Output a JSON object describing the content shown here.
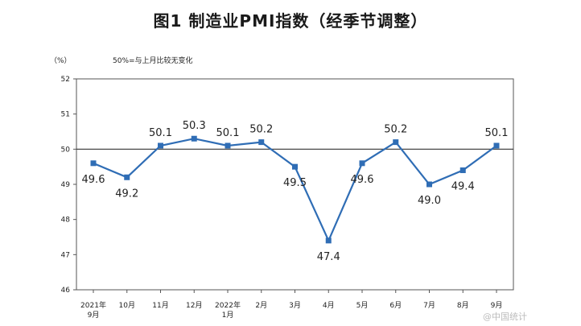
{
  "chart_data": {
    "type": "line",
    "title": "图1  制造业PMI指数（经季节调整）",
    "ylabel": "（%）",
    "reference_note": "50%=与上月比较无变化",
    "reference_value": 50,
    "ylim": [
      46,
      52
    ],
    "yticks": [
      "46",
      "47",
      "48",
      "49",
      "50",
      "51",
      "52"
    ],
    "categories": [
      [
        "2021年",
        "9月"
      ],
      [
        "10月"
      ],
      [
        "11月"
      ],
      [
        "12月"
      ],
      [
        "2022年",
        "1月"
      ],
      [
        "2月"
      ],
      [
        "3月"
      ],
      [
        "4月"
      ],
      [
        "5月"
      ],
      [
        "6月"
      ],
      [
        "7月"
      ],
      [
        "8月"
      ],
      [
        "9月"
      ]
    ],
    "series": [
      {
        "values": [
          49.6,
          49.2,
          50.1,
          50.3,
          50.1,
          50.2,
          49.5,
          47.4,
          49.6,
          50.2,
          49.0,
          49.4,
          50.1
        ],
        "labels": [
          "49.6",
          "49.2",
          "50.1",
          "50.3",
          "50.1",
          "50.2",
          "49.5",
          "47.4",
          "49.6",
          "50.2",
          "49.0",
          "49.4",
          "50.1"
        ],
        "label_pos": [
          "below",
          "below",
          "above",
          "above",
          "above",
          "above",
          "below",
          "below",
          "below",
          "above",
          "below",
          "below",
          "above"
        ]
      }
    ],
    "grid": false,
    "colors": {
      "line": "#2f6db5",
      "marker": "#2f6db5",
      "frame": "#555555",
      "reference": "#333333"
    }
  },
  "watermark": "@中国统计"
}
